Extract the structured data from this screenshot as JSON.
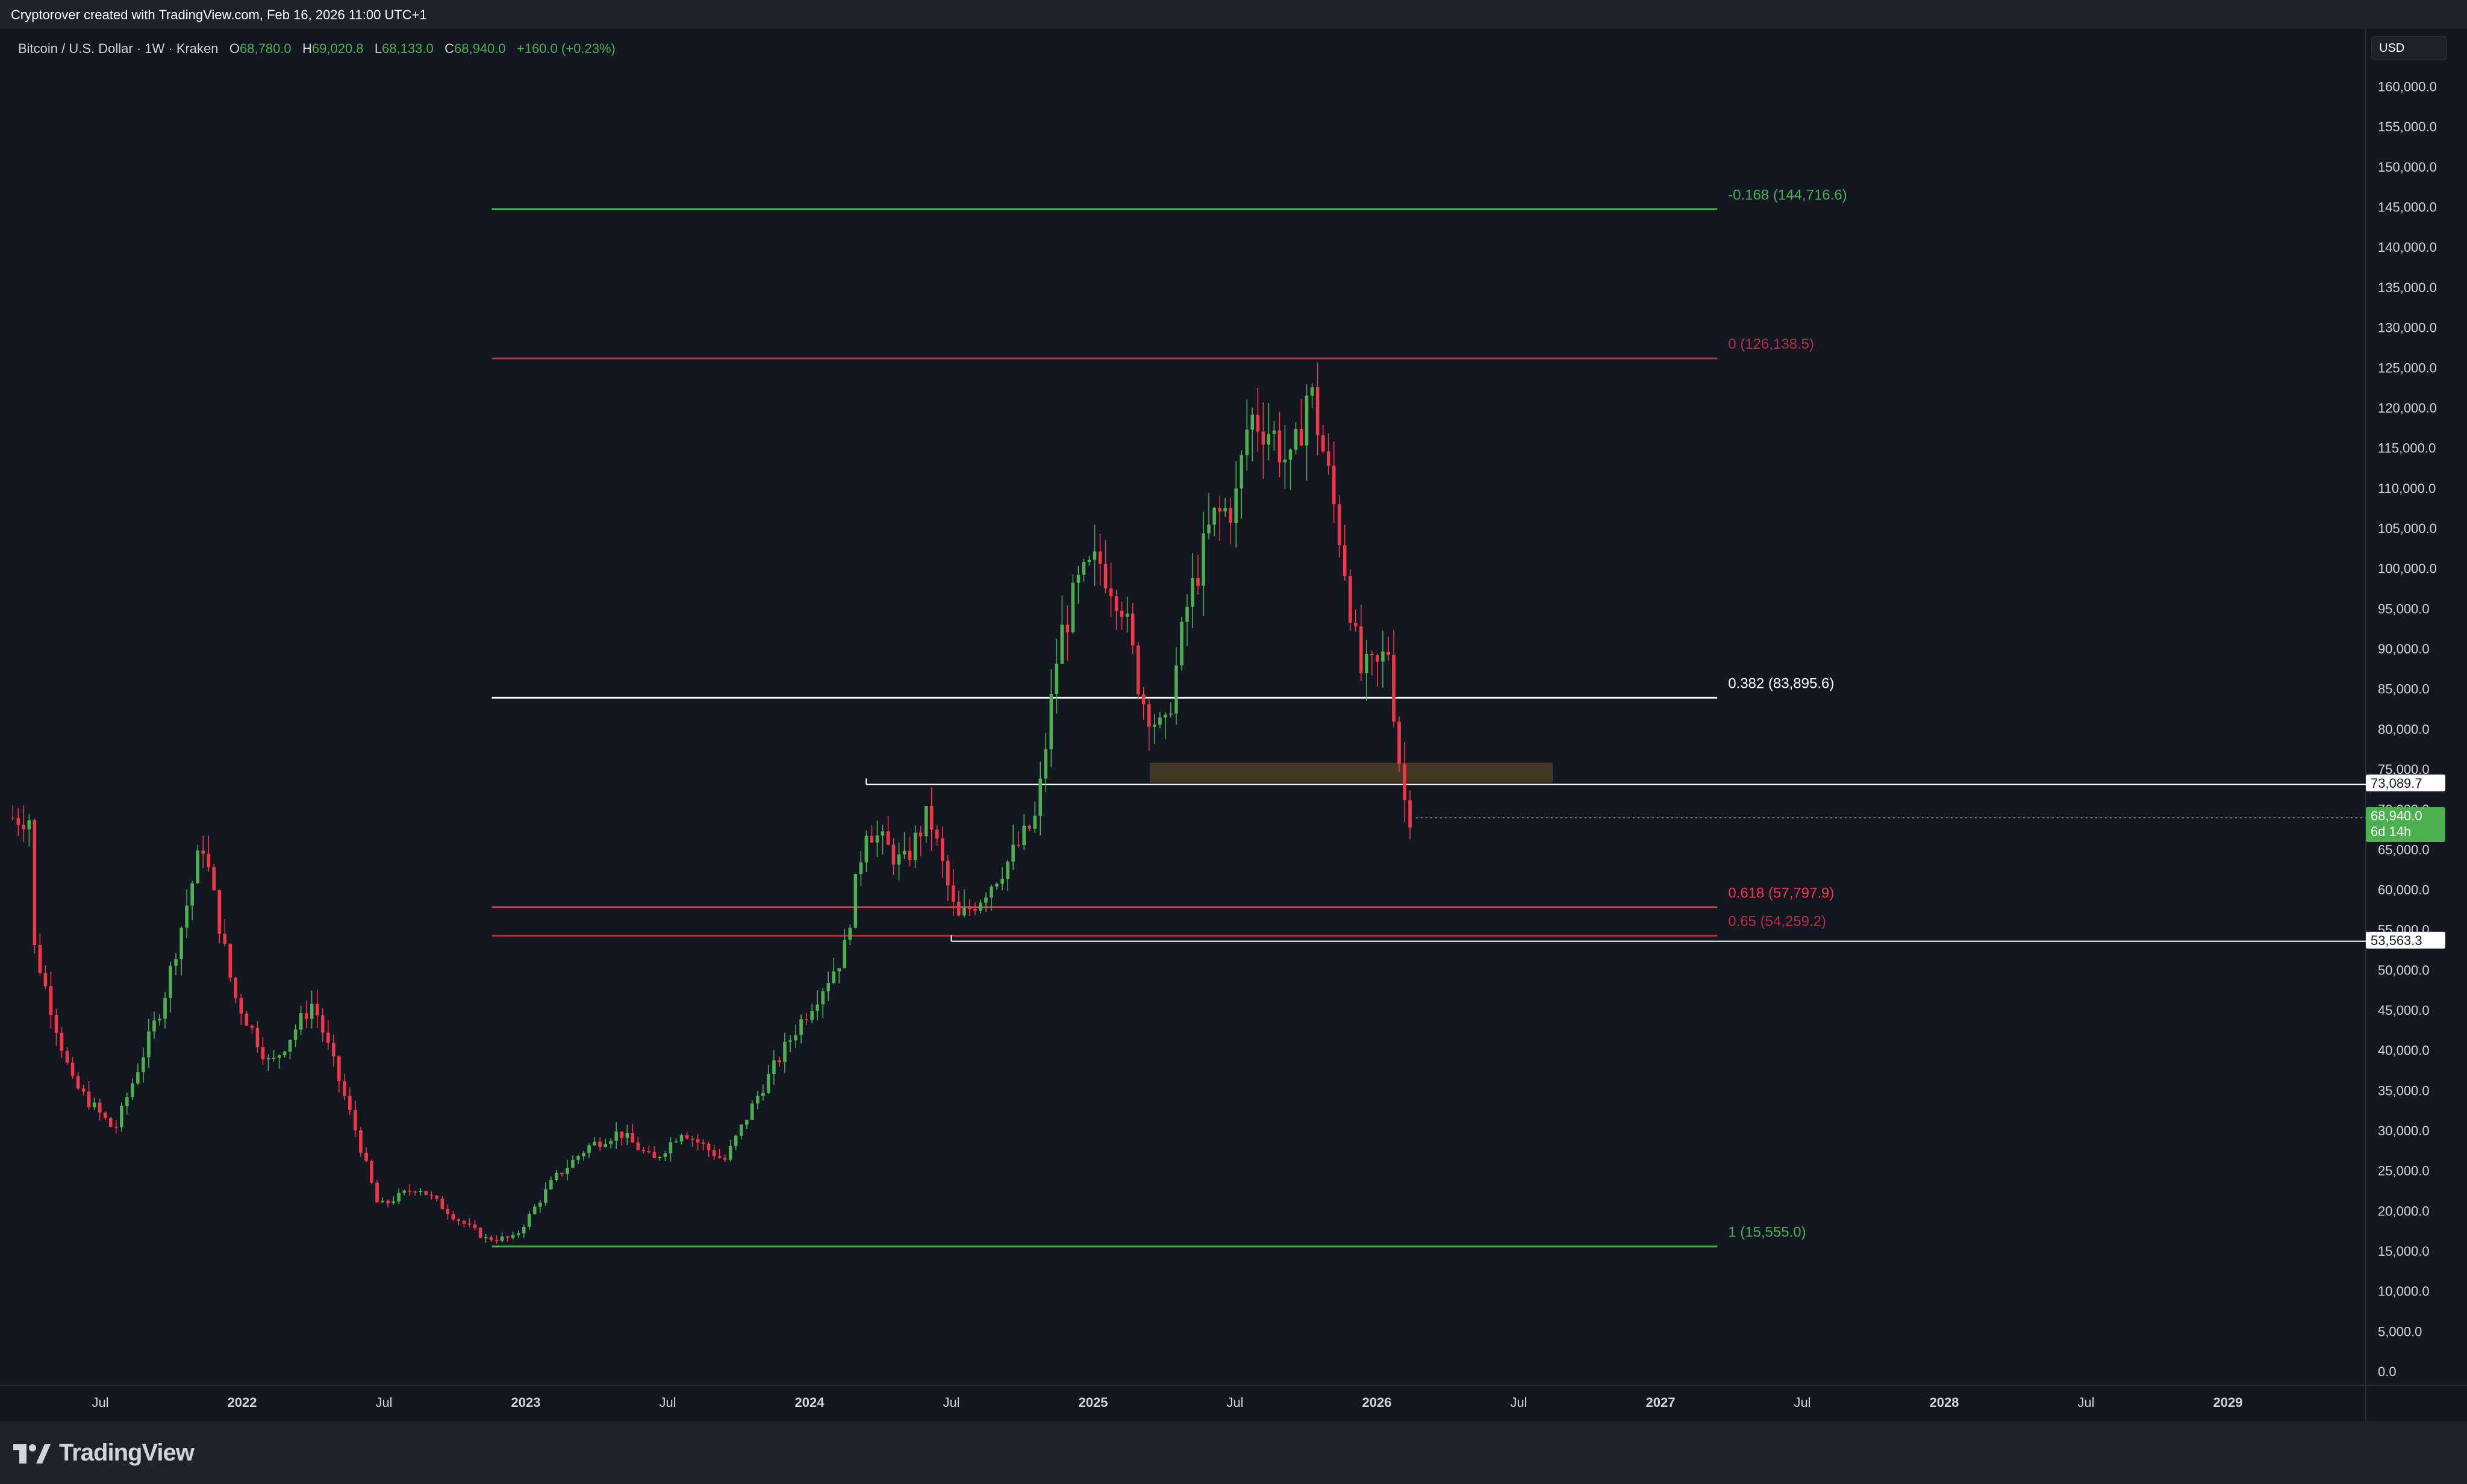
{
  "header": {
    "caption": "Cryptorover created with TradingView.com, Feb 16, 2026 11:00 UTC+1"
  },
  "legend": {
    "symbol": "Bitcoin / U.S. Dollar · 1W · Kraken",
    "open_label": "O",
    "open": "68,780.0",
    "high_label": "H",
    "high": "69,020.8",
    "low_label": "L",
    "low": "68,133.0",
    "close_label": "C",
    "close": "68,940.0",
    "change": "+160.0 (+0.23%)"
  },
  "currency_button": "USD",
  "price_labels": {
    "level_a": "73,089.7",
    "level_b": "53,563.3",
    "last_price": "68,940.0",
    "countdown": "6d 14h"
  },
  "branding": {
    "name": "TradingView"
  },
  "colors": {
    "background": "#131722",
    "up": "#4caf50",
    "down": "#f23645",
    "fib_green": "#4caf50",
    "fib_red": "#b2323f",
    "fib_white": "#ffffff",
    "zone": "#5d4a26"
  },
  "chart_data": {
    "type": "candlestick",
    "symbol": "BTCUSD",
    "interval": "1W",
    "exchange": "Kraken",
    "ylim": [
      0,
      162000
    ],
    "y_ticks": [
      "160,000.0",
      "155,000.0",
      "150,000.0",
      "145,000.0",
      "140,000.0",
      "135,000.0",
      "130,000.0",
      "125,000.0",
      "120,000.0",
      "115,000.0",
      "110,000.0",
      "105,000.0",
      "100,000.0",
      "95,000.0",
      "90,000.0",
      "85,000.0",
      "80,000.0",
      "75,000.0",
      "70,000.0",
      "65,000.0",
      "60,000.0",
      "55,000.0",
      "50,000.0",
      "45,000.0",
      "40,000.0",
      "35,000.0",
      "30,000.0",
      "25,000.0",
      "20,000.0",
      "15,000.0",
      "10,000.0",
      "5,000.0",
      "0.0"
    ],
    "x_ticks": [
      {
        "label": "Jul",
        "t": 2021.5,
        "bold": false
      },
      {
        "label": "2022",
        "t": 2022.0,
        "bold": true
      },
      {
        "label": "Jul",
        "t": 2022.5,
        "bold": false
      },
      {
        "label": "2023",
        "t": 2023.0,
        "bold": true
      },
      {
        "label": "Jul",
        "t": 2023.5,
        "bold": false
      },
      {
        "label": "2024",
        "t": 2024.0,
        "bold": true
      },
      {
        "label": "Jul",
        "t": 2024.5,
        "bold": false
      },
      {
        "label": "2025",
        "t": 2025.0,
        "bold": true
      },
      {
        "label": "Jul",
        "t": 2025.5,
        "bold": false
      },
      {
        "label": "2026",
        "t": 2026.0,
        "bold": true
      },
      {
        "label": "Jul",
        "t": 2026.5,
        "bold": false
      },
      {
        "label": "2027",
        "t": 2027.0,
        "bold": true
      },
      {
        "label": "Jul",
        "t": 2027.5,
        "bold": false
      },
      {
        "label": "2028",
        "t": 2028.0,
        "bold": true
      },
      {
        "label": "Jul",
        "t": 2028.5,
        "bold": false
      },
      {
        "label": "2029",
        "t": 2029.0,
        "bold": true
      }
    ],
    "anchors": [
      [
        2021.25,
        55000
      ],
      [
        2021.4,
        36000
      ],
      [
        2021.55,
        30000
      ],
      [
        2021.72,
        46000
      ],
      [
        2021.86,
        66000
      ],
      [
        2021.97,
        47000
      ],
      [
        2022.1,
        38000
      ],
      [
        2022.25,
        46000
      ],
      [
        2022.4,
        30000
      ],
      [
        2022.48,
        20500
      ],
      [
        2022.62,
        23000
      ],
      [
        2022.75,
        19200
      ],
      [
        2022.86,
        16500
      ],
      [
        2022.96,
        16600
      ],
      [
        2023.1,
        24000
      ],
      [
        2023.22,
        28000
      ],
      [
        2023.33,
        29800
      ],
      [
        2023.45,
        26200
      ],
      [
        2023.55,
        30000
      ],
      [
        2023.7,
        26200
      ],
      [
        2023.82,
        34500
      ],
      [
        2023.95,
        42500
      ],
      [
        2024.12,
        52000
      ],
      [
        2024.2,
        68000
      ],
      [
        2024.33,
        63000
      ],
      [
        2024.42,
        69500
      ],
      [
        2024.52,
        56000
      ],
      [
        2024.6,
        59000
      ],
      [
        2024.7,
        63500
      ],
      [
        2024.8,
        69000
      ],
      [
        2024.88,
        91000
      ],
      [
        2024.95,
        98000
      ],
      [
        2025.02,
        101000
      ],
      [
        2025.1,
        96000
      ],
      [
        2025.17,
        84000
      ],
      [
        2025.25,
        79000
      ],
      [
        2025.33,
        95000
      ],
      [
        2025.42,
        106000
      ],
      [
        2025.5,
        108000
      ],
      [
        2025.55,
        119000
      ],
      [
        2025.63,
        117000
      ],
      [
        2025.7,
        112000
      ],
      [
        2025.76,
        123000
      ],
      [
        2025.82,
        113000
      ],
      [
        2025.88,
        102000
      ],
      [
        2025.94,
        87000
      ],
      [
        2026.0,
        87500
      ],
      [
        2026.04,
        90000
      ],
      [
        2026.07,
        78500
      ],
      [
        2026.1,
        70500
      ],
      [
        2026.125,
        68940
      ]
    ],
    "fib_levels": [
      {
        "ratio": "-0.168",
        "value": 144716.6,
        "label": "-0.168 (144,716.6)",
        "color": "#4caf50"
      },
      {
        "ratio": "0",
        "value": 126138.5,
        "label": "0 (126,138.5)",
        "color": "#b2323f"
      },
      {
        "ratio": "0.382",
        "value": 83895.6,
        "label": "0.382 (83,895.6)",
        "color": "#ffffff"
      },
      {
        "ratio": "0.618",
        "value": 57797.9,
        "label": "0.618 (57,797.9)",
        "color": "#f23645"
      },
      {
        "ratio": "0.65",
        "value": 54259.2,
        "label": "0.65 (54,259.2)",
        "color": "#b2323f"
      },
      {
        "ratio": "1",
        "value": 15555.0,
        "label": "1 (15,555.0)",
        "color": "#4caf50"
      }
    ],
    "fib_range": {
      "start": 2022.88,
      "end": 2027.2
    },
    "horizontal_lines": [
      {
        "value": 73089.7,
        "start": 2024.2
      },
      {
        "value": 53563.3,
        "start": 2024.5
      }
    ],
    "zone": {
      "t0": 2025.2,
      "t1": 2026.62,
      "low": 73300,
      "high": 75800
    },
    "last_price": 68940.0
  }
}
